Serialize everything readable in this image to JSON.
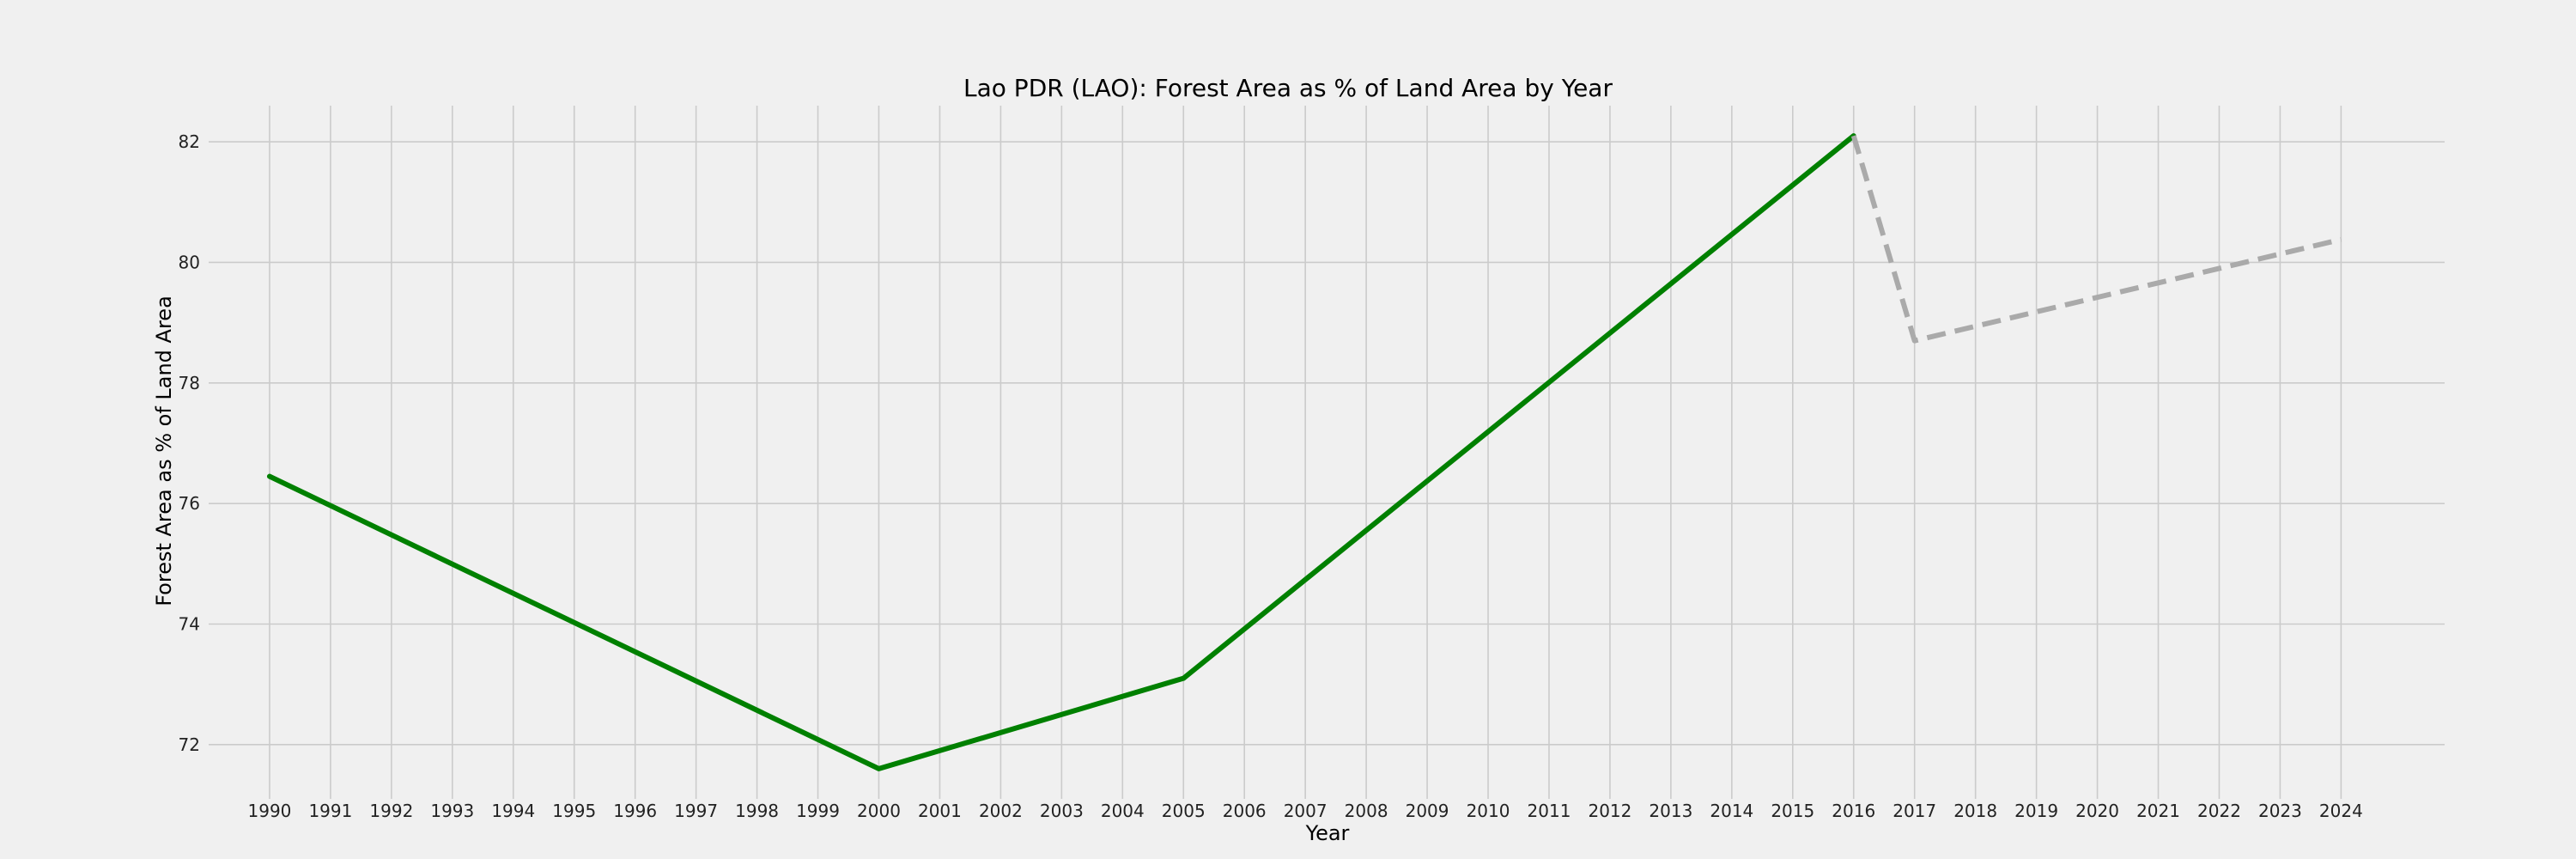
{
  "chart_data": {
    "type": "line",
    "title": "Lao PDR (LAO): Forest Area as % of Land Area by Year",
    "xlabel": "Year",
    "ylabel": "Forest Area as % of Land Area",
    "x_ticks": [
      "1990",
      "1991",
      "1992",
      "1993",
      "1994",
      "1995",
      "1996",
      "1997",
      "1998",
      "1999",
      "2000",
      "2001",
      "2002",
      "2003",
      "2004",
      "2005",
      "2006",
      "2007",
      "2008",
      "2009",
      "2010",
      "2011",
      "2012",
      "2013",
      "2014",
      "2015",
      "2016",
      "2017",
      "2018",
      "2019",
      "2020",
      "2021",
      "2022",
      "2023",
      "2024"
    ],
    "y_ticks": [
      72,
      74,
      76,
      78,
      80,
      82
    ],
    "xlim": [
      1989,
      2025.7
    ],
    "ylim": [
      71.1,
      82.6
    ],
    "grid": true,
    "series": [
      {
        "style": "solid",
        "color": "#008000",
        "x": [
          1990,
          2000,
          2005,
          2016
        ],
        "y": [
          76.45,
          71.6,
          73.1,
          82.1
        ]
      },
      {
        "style": "dashed",
        "color": "#aaaaaa",
        "x": [
          2016,
          2017,
          2024
        ],
        "y": [
          82.1,
          78.7,
          80.38
        ]
      }
    ]
  }
}
